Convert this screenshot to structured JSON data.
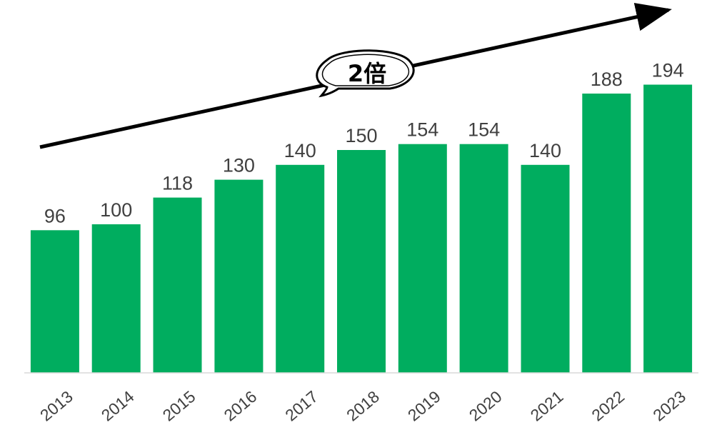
{
  "colors": {
    "bar": "#00AD5F",
    "axis": "#D9D9D9",
    "arrow": "#000000",
    "text": "#404040"
  },
  "annotation": {
    "text": "2倍"
  },
  "chart_data": {
    "type": "bar",
    "categories": [
      "2013",
      "2014",
      "2015",
      "2016",
      "2017",
      "2018",
      "2019",
      "2020",
      "2021",
      "2022",
      "2023"
    ],
    "values": [
      96,
      100,
      118,
      130,
      140,
      150,
      154,
      154,
      140,
      188,
      194
    ],
    "ylim": [
      0,
      200
    ],
    "grid": false,
    "data_labels": true
  }
}
